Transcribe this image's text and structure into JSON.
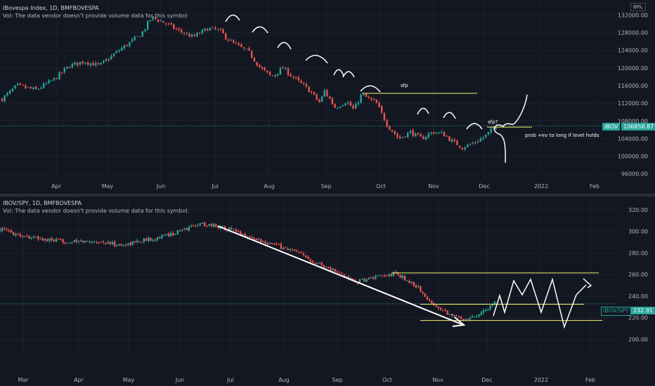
{
  "top_pane": {
    "title": "IBovespa Index, 1D, BMFBOVESPA",
    "vol_note": "Vol: The data vendor doesn't provide volume data for this symbol",
    "currency": "BRL",
    "symbol_tag": "IBOV",
    "last_value": "106858.87",
    "annotations": {
      "sfp": "sfp",
      "sfp_q": "sfp?",
      "note": "prob +ev to long if level holds"
    }
  },
  "bottom_pane": {
    "title": "IBOV/SPY, 1D, BMFBOVESPA",
    "vol_note": "Vol: The data vendor doesn't provide volume data for this symbol.",
    "symbol_tag": "IBOV/SPY",
    "last_value": "232.91"
  },
  "colors": {
    "background": "#131722",
    "up": "#26a69a",
    "down": "#ef5350",
    "grid": "#1e222d",
    "axis_text": "#b2b5be",
    "level_line": "#f5f06c",
    "drawing": "#ffffff",
    "tag_teal": "#26a69a"
  },
  "chart_data": [
    {
      "type": "candlestick",
      "title": "IBovespa Index, 1D, BMFBOVESPA",
      "x_ticks": [
        "Apr",
        "May",
        "Jun",
        "Jul",
        "Aug",
        "Sep",
        "Oct",
        "Nov",
        "Dec",
        "2022",
        "Feb"
      ],
      "y_ticks": [
        "132000.00",
        "128000.00",
        "124000.00",
        "120000.00",
        "116000.00",
        "112000.00",
        "108000.00",
        "104000.00",
        "100000.00",
        "96000.00"
      ],
      "ylim": [
        95000,
        133500
      ],
      "last_value": 106858.87,
      "levels": [
        114250,
        106600
      ],
      "close_path": [
        [
          0,
          113000
        ],
        [
          0.04,
          116000
        ],
        [
          0.09,
          115000
        ],
        [
          0.14,
          117500
        ],
        [
          0.18,
          120500
        ],
        [
          0.22,
          121500
        ],
        [
          0.26,
          120500
        ],
        [
          0.32,
          124500
        ],
        [
          0.37,
          127500
        ],
        [
          0.4,
          131500
        ],
        [
          0.44,
          130000
        ],
        [
          0.47,
          128500
        ],
        [
          0.51,
          127000
        ],
        [
          0.55,
          129000
        ],
        [
          0.58,
          128500
        ],
        [
          0.61,
          126000
        ],
        [
          0.64,
          124500
        ],
        [
          0.66,
          123500
        ],
        [
          0.69,
          120000
        ],
        [
          0.72,
          118000
        ],
        [
          0.75,
          120000
        ],
        [
          0.79,
          117000
        ],
        [
          0.82,
          115000
        ],
        [
          0.85,
          112000
        ],
        [
          0.86,
          115000
        ],
        [
          0.89,
          111000
        ],
        [
          0.92,
          112500
        ],
        [
          0.94,
          110500
        ],
        [
          0.96,
          114000
        ],
        [
          0.97,
          113500
        ],
        [
          1.0,
          112000
        ],
        [
          1.03,
          107000
        ],
        [
          1.06,
          104000
        ],
        [
          1.09,
          105500
        ],
        [
          1.12,
          104000
        ],
        [
          1.15,
          105500
        ],
        [
          1.18,
          105000
        ],
        [
          1.2,
          103500
        ],
        [
          1.23,
          102000
        ],
        [
          1.26,
          103000
        ],
        [
          1.29,
          104500
        ],
        [
          1.32,
          106858.87
        ]
      ]
    },
    {
      "type": "candlestick",
      "title": "IBOV/SPY, 1D, BMFBOVESPA",
      "x_ticks": [
        "Mar",
        "Apr",
        "May",
        "Jun",
        "Jul",
        "Aug",
        "Sep",
        "Oct",
        "Nov",
        "Dec",
        "2022",
        "Feb"
      ],
      "y_ticks": [
        "320.00",
        "300.00",
        "280.00",
        "260.00",
        "240.00",
        "220.00",
        "200.00"
      ],
      "ylim": [
        188,
        327
      ],
      "last_value": 232.91,
      "levels": [
        261.5,
        232.5,
        217.5
      ],
      "close_path": [
        [
          0,
          302
        ],
        [
          0.05,
          296
        ],
        [
          0.1,
          292
        ],
        [
          0.16,
          290
        ],
        [
          0.21,
          291
        ],
        [
          0.27,
          287
        ],
        [
          0.31,
          291
        ],
        [
          0.36,
          295
        ],
        [
          0.4,
          300
        ],
        [
          0.44,
          307
        ],
        [
          0.47,
          306
        ],
        [
          0.51,
          302
        ],
        [
          0.55,
          295
        ],
        [
          0.6,
          289
        ],
        [
          0.65,
          282
        ],
        [
          0.7,
          272
        ],
        [
          0.75,
          262
        ],
        [
          0.79,
          253
        ],
        [
          0.82,
          256
        ],
        [
          0.85,
          258
        ],
        [
          0.88,
          261
        ],
        [
          0.9,
          256
        ],
        [
          0.93,
          248
        ],
        [
          0.95,
          236
        ],
        [
          0.98,
          229
        ],
        [
          1.01,
          221
        ],
        [
          1.04,
          219
        ],
        [
          1.07,
          225
        ],
        [
          1.1,
          232.91
        ]
      ]
    }
  ]
}
